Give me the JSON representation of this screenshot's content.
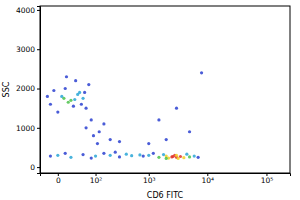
{
  "chart_data": {
    "type": "scatter",
    "x_label": "CD6 FITC",
    "y_label": "SSC",
    "log": "x",
    "marker": "circle",
    "xlim": [
      -30,
      250000
    ],
    "xticks": [
      {
        "value": 0,
        "label": "0"
      },
      {
        "value": 100,
        "label": "10²"
      },
      {
        "value": 1000,
        "label": "10³"
      },
      {
        "value": 10000,
        "label": "10⁴"
      },
      {
        "value": 100000,
        "label": "10⁵"
      }
    ],
    "ylim": [
      -150,
      4100
    ],
    "yticks": [
      0,
      1000,
      2000,
      3000,
      4000
    ],
    "x": [
      5,
      20,
      40,
      -10,
      60,
      10,
      30,
      50,
      0,
      15,
      35,
      -5,
      70,
      25,
      45,
      8,
      55,
      12,
      -15,
      28,
      120,
      150,
      90,
      200,
      80,
      60,
      300,
      110,
      0,
      20,
      50,
      100,
      150,
      200,
      300,
      400,
      500,
      700,
      -10,
      10,
      80,
      250,
      1000,
      1500,
      2000,
      2500,
      3000,
      3500,
      4000,
      5000,
      1200,
      1800,
      2200,
      2800,
      3200,
      6000,
      7000,
      2600,
      3000,
      2000,
      4500,
      800,
      2000,
      5000,
      1500,
      3000,
      8000,
      1000
    ],
    "values": [
      1800,
      1700,
      1900,
      1600,
      1500,
      2000,
      2200,
      1750,
      1400,
      1650,
      1850,
      1950,
      2100,
      1550,
      1600,
      1750,
      1900,
      2300,
      1800,
      1720,
      900,
      1100,
      800,
      700,
      1200,
      1000,
      650,
      600,
      300,
      250,
      320,
      280,
      350,
      300,
      260,
      330,
      290,
      310,
      280,
      350,
      230,
      380,
      300,
      250,
      280,
      260,
      250,
      270,
      240,
      260,
      350,
      320,
      230,
      300,
      220,
      280,
      250,
      270,
      300,
      220,
      330,
      280,
      700,
      900,
      1200,
      1500,
      2400,
      600
    ],
    "colors": [
      "#29a6d6",
      "#4cc24a",
      "#29a6d6",
      "#2a3fd0",
      "#2a3fd0",
      "#2a3fd0",
      "#2a3fd0",
      "#29a6d6",
      "#2a3fd0",
      "#4cc24a",
      "#29a6d6",
      "#2a3fd0",
      "#2a3fd0",
      "#2a3fd0",
      "#2a3fd0",
      "#4cc24a",
      "#2a3fd0",
      "#2a3fd0",
      "#2a3fd0",
      "#29a6d6",
      "#2a3fd0",
      "#2a3fd0",
      "#2a3fd0",
      "#2a3fd0",
      "#2a3fd0",
      "#2a3fd0",
      "#2a3fd0",
      "#2a3fd0",
      "#29a6d6",
      "#29a6d6",
      "#2a3fd0",
      "#29a6d6",
      "#2a3fd0",
      "#29a6d6",
      "#2a3fd0",
      "#29a6d6",
      "#29a6d6",
      "#29a6d6",
      "#2a3fd0",
      "#2a3fd0",
      "#2a3fd0",
      "#2a3fd0",
      "#29a6d6",
      "#4cc24a",
      "#f2d024",
      "#e0322a",
      "#e0322a",
      "#e0322a",
      "#f2d024",
      "#4cc24a",
      "#2a3fd0",
      "#29a6d6",
      "#f2d024",
      "#e0322a",
      "#f2d024",
      "#29a6d6",
      "#2a3fd0",
      "#e0322a",
      "#f2d024",
      "#4cc24a",
      "#29a6d6",
      "#2a3fd0",
      "#2a3fd0",
      "#2a3fd0",
      "#2a3fd0",
      "#2a3fd0",
      "#2a3fd0",
      "#2a3fd0"
    ]
  }
}
